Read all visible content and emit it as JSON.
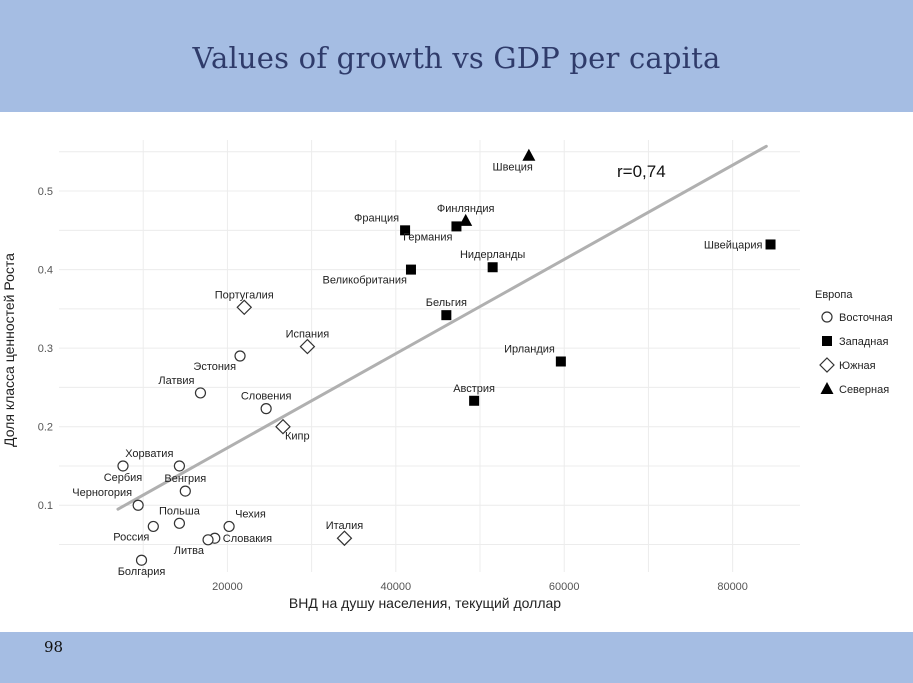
{
  "slide": {
    "title": "Values of growth vs GDP per capita",
    "page_number": "98"
  },
  "colors": {
    "header_band": "#a5bde3",
    "title_text": "#2f3b6a",
    "trend_line": "#b0b0b0",
    "grid": "#ececec"
  },
  "chart_data": {
    "type": "scatter",
    "title": "",
    "xlabel": "ВНД на душу населения, текущий доллар",
    "ylabel": "Доля класса ценностей Роста",
    "xlim": [
      0,
      88000
    ],
    "ylim": [
      0.015,
      0.565
    ],
    "x_ticks": [
      20000,
      40000,
      60000,
      80000
    ],
    "x_tick_labels": [
      "20000",
      "40000",
      "60000",
      "80000"
    ],
    "y_ticks": [
      0.1,
      0.2,
      0.3,
      0.4,
      0.5
    ],
    "y_tick_labels": [
      "0.1",
      "0.2",
      "0.3",
      "0.4",
      "0.5"
    ],
    "annotation": "r=0,74",
    "trend_line": {
      "x": [
        7000,
        84000
      ],
      "y": [
        0.095,
        0.557
      ]
    },
    "legend": {
      "title": "Европа",
      "position": "right",
      "entries": [
        {
          "key": "east",
          "label": "Восточная",
          "marker": "circle"
        },
        {
          "key": "west",
          "label": "Западная",
          "marker": "square"
        },
        {
          "key": "south",
          "label": "Южная",
          "marker": "diamond"
        },
        {
          "key": "north",
          "label": "Северная",
          "marker": "triangle"
        }
      ]
    },
    "points": [
      {
        "label": "Швеция",
        "x": 55800,
        "y": 0.545,
        "group": "north",
        "label_pos": "left-below"
      },
      {
        "label": "Франция",
        "x": 41100,
        "y": 0.45,
        "group": "west",
        "label_pos": "above-left"
      },
      {
        "label": "Германия",
        "x": 47200,
        "y": 0.455,
        "group": "west",
        "label_pos": "below-left"
      },
      {
        "label": "Финляндия",
        "x": 48300,
        "y": 0.462,
        "group": "north",
        "label_pos": "above"
      },
      {
        "label": "Швейцария",
        "x": 84500,
        "y": 0.432,
        "group": "west",
        "label_pos": "left"
      },
      {
        "label": "Нидерланды",
        "x": 51500,
        "y": 0.403,
        "group": "west",
        "label_pos": "above"
      },
      {
        "label": "Великобритания",
        "x": 41800,
        "y": 0.4,
        "group": "west",
        "label_pos": "below-left"
      },
      {
        "label": "Бельгия",
        "x": 46000,
        "y": 0.342,
        "group": "west",
        "label_pos": "above"
      },
      {
        "label": "Ирландия",
        "x": 59600,
        "y": 0.283,
        "group": "west",
        "label_pos": "above-left"
      },
      {
        "label": "Австрия",
        "x": 49300,
        "y": 0.233,
        "group": "west",
        "label_pos": "above"
      },
      {
        "label": "Португалия",
        "x": 22000,
        "y": 0.352,
        "group": "south",
        "label_pos": "above"
      },
      {
        "label": "Испания",
        "x": 29500,
        "y": 0.302,
        "group": "south",
        "label_pos": "above"
      },
      {
        "label": "Кипр",
        "x": 26600,
        "y": 0.2,
        "group": "south",
        "label_pos": "below-right"
      },
      {
        "label": "Италия",
        "x": 33900,
        "y": 0.058,
        "group": "south",
        "label_pos": "above"
      },
      {
        "label": "Эстония",
        "x": 21500,
        "y": 0.29,
        "group": "east",
        "label_pos": "below-left"
      },
      {
        "label": "Латвия",
        "x": 16800,
        "y": 0.243,
        "group": "east",
        "label_pos": "above-left"
      },
      {
        "label": "Словения",
        "x": 24600,
        "y": 0.223,
        "group": "east",
        "label_pos": "above"
      },
      {
        "label": "Хорватия",
        "x": 14300,
        "y": 0.15,
        "group": "east",
        "label_pos": "above-left"
      },
      {
        "label": "Сербия",
        "x": 7600,
        "y": 0.15,
        "group": "east",
        "label_pos": "below"
      },
      {
        "label": "Венгрия",
        "x": 15000,
        "y": 0.118,
        "group": "east",
        "label_pos": "above"
      },
      {
        "label": "Черногория",
        "x": 9400,
        "y": 0.1,
        "group": "east",
        "label_pos": "above-left"
      },
      {
        "label": "Польша",
        "x": 14300,
        "y": 0.077,
        "group": "east",
        "label_pos": "above"
      },
      {
        "label": "Россия",
        "x": 11200,
        "y": 0.073,
        "group": "east",
        "label_pos": "below-left"
      },
      {
        "label": "Болгария",
        "x": 9800,
        "y": 0.03,
        "group": "east",
        "label_pos": "below"
      },
      {
        "label": "Чехия",
        "x": 20200,
        "y": 0.073,
        "group": "east",
        "label_pos": "above-right"
      },
      {
        "label": "Словакия",
        "x": 18500,
        "y": 0.058,
        "group": "east",
        "label_pos": "right"
      },
      {
        "label": "Литва",
        "x": 17700,
        "y": 0.056,
        "group": "east",
        "label_pos": "below-left"
      }
    ]
  }
}
